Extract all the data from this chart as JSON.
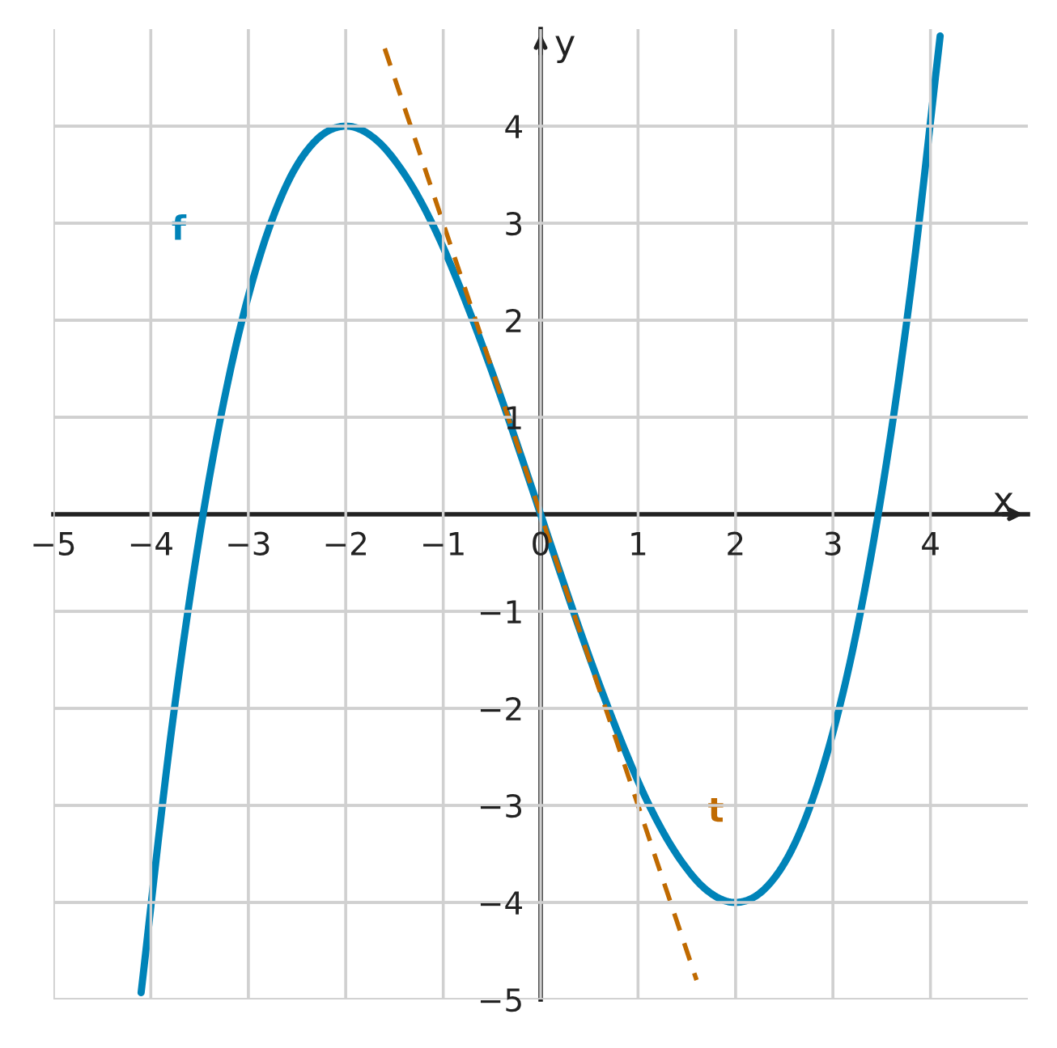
{
  "chart_data": {
    "type": "line",
    "xlabel": "x",
    "ylabel": "y",
    "xlim": [
      -5,
      5
    ],
    "ylim": [
      -5,
      5
    ],
    "xticks": [
      {
        "value": -5,
        "label": "−5"
      },
      {
        "value": -4,
        "label": "−4"
      },
      {
        "value": -3,
        "label": "−3"
      },
      {
        "value": -2,
        "label": "−2"
      },
      {
        "value": -1,
        "label": "−1"
      },
      0,
      1,
      2,
      3,
      4
    ],
    "yticks": [
      {
        "value": -5,
        "label": "−5"
      },
      {
        "value": -4,
        "label": "−4"
      },
      {
        "value": -3,
        "label": "−3"
      },
      {
        "value": -2,
        "label": "−2"
      },
      {
        "value": -1,
        "label": "−1"
      },
      1,
      2,
      3,
      4
    ],
    "grid": true,
    "legend": false,
    "marker": "none",
    "series": [
      {
        "name": "f",
        "color": "#0083b8",
        "line_style": "solid",
        "x": [
          -4.1,
          -3.8,
          -3.5,
          -3.2,
          -2.9,
          -2.6,
          -2.3,
          -2,
          -1.7,
          -1.4,
          -1.1,
          -0.8,
          -0.5,
          -0.2,
          0,
          0.2,
          0.5,
          0.8,
          1.1,
          1.4,
          1.7,
          2,
          2.3,
          2.6,
          2.9,
          3.2,
          3.5,
          3.8,
          4.1
        ],
        "values": [
          -4.93,
          -2.32,
          -0.22,
          1.41,
          2.6,
          3.41,
          3.86,
          4,
          3.87,
          3.51,
          2.97,
          2.27,
          1.47,
          0.6,
          0,
          -0.6,
          -1.47,
          -2.27,
          -2.97,
          -3.51,
          -3.87,
          -4,
          -3.86,
          -3.41,
          -2.6,
          -1.41,
          0.22,
          2.32,
          4.93
        ]
      },
      {
        "name": "t",
        "color": "#c06a00",
        "line_style": "dashed",
        "x": [
          -1.6,
          1.6
        ],
        "values": [
          4.8,
          -4.8
        ]
      }
    ]
  }
}
